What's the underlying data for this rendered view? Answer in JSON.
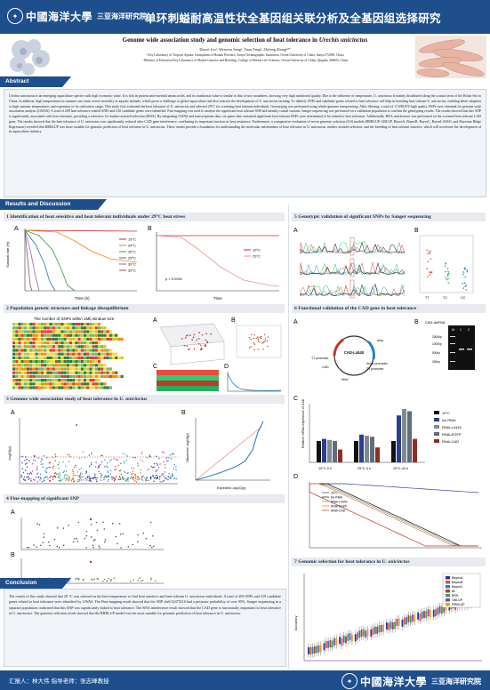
{
  "header": {
    "logo_cn": "中國海洋大學",
    "logo_sub": "三亚海洋研究院",
    "poster_title_cn": "单环刺螠耐高温性状全基因组关联分析及全基因组选择研究"
  },
  "paper": {
    "title_en": "Genome wide association study and genomic selection of heat tolerance in ",
    "title_species": "Urechis unicinctus",
    "authors": "Dawei Lin¹, Wenwen Jiang¹, Yuan Fang¹, Zhifeng Zhang¹²*",
    "affiliation_1": "¹ Key Laboratory of Tropical Aquatic Germplasm of Hainan Province, Sanya Oceanographic Institution, Ocean University of China, Sanya 572000, China",
    "affiliation_2": "² Ministry of Education Key Laboratory of Marine Genetics and Breeding, College of Marine Life Sciences, Ocean University of China, Qingdao 266003, China"
  },
  "sections": {
    "abstract": "Abstract",
    "results": "Results and Discussion",
    "conclusion": "Conclusion"
  },
  "abstract_text": "Urechis unicinctus is an emerging aquaculture species with high economic value. It is rich in protein and essential amino acids, and its nutritional value is similar to that of sea cucumbers, showing very high nutritional quality. Due to the influence of temperature, U. unicinctus is mainly distributed along the coastal areas of the Bohai Sea in China. In addition, high temperatures in summer can cause severe mortality in aquatic animals, which poses a challenge to global aquaculture and also restricts the development of U. unicinctus farming. To identify SNPs and candidate genes related to heat tolerance will help in breeding heat tolerant U. unicinctus, enabling better adaption to high summer temperatures and expansion of its cultivation range. This study first evaluated the heat tolerance of U. unicinctus and selected 29°C for screening heat tolerant individuals. Genotyping was performed using whole-genome resequencing. After filtering, a total of 17,698,070 high quality SNPs were obtained for genome wide association analysis (GWAS). A total of 209 heat tolerance related SNPs and 318 candidate genes were identified. Fine-mapping was used to analyze the significant heat tolerant SNP and identify causal variants. Sanger sequencing was performed on a validation population to confirm the genotyping results. The results showed that this SNP is significantly associated with heat tolerance, providing a reference for marker-assisted selection (MAS). By integrating GWAS and transcriptome data, six genes that contained significant heat tolerant SNPs were determined to be related to heat tolerance. Additionally, RNA interference was performed on the screened heat tolerant CAD gene. The results showed that the heat tolerance of U. unicinctus was significantly reduced after CAD gene interference, confirming its important function in heat resistance. Furthermore, a comparative evaluation of seven genomic selection (GS) models (RRBLUP, GBLUP, BayesA, BayesB, BayesC, BayesLASSO, and Bayesian Ridge Regression) revealed that RRBLUP was more suitable for genomic prediction of heat tolerance in U. unicinctus. These results provide a foundation for understanding the molecular mechanisms of heat tolerance in U. unicinctus, marker assisted selection, and the breeding of heat tolerant varieties, which will accelerate the development of its aquaculture industry.",
  "panels": {
    "p1": "1 Identification of heat sensitive and heat tolerant individuals under 29°C heat stress",
    "p2": "2 Population genetic structure and linkage disequilibrium",
    "p3": "3 Genome wide association study of heat tolerance in ",
    "p3_species": "U. unicinctus",
    "p4": "4 Fine-mapping of significant SNP",
    "p5": "5 Genotypic validation of significant SNPs by Sanger sequencing",
    "p6": "6 Functional validation of the CAD gene in heat tolerance",
    "p7": "7 Genomic selection for heat tolerance in ",
    "p7_species": "U. unicinctus"
  },
  "fig_text": {
    "p1_legend": [
      "19°C",
      "24°C",
      "26°C",
      "29°C",
      "30°C",
      "32°C"
    ],
    "p1b_legend": [
      "19°C",
      "29°C"
    ],
    "p1_xlabel": "Time (h)",
    "p1b_xlabel": "Time",
    "p1_ylabel": "Survival rate (%)",
    "p1b_pvalue": "p < 0.0001",
    "p2_title": "The number of SNPs within 1Mb window size",
    "p6_legend": [
      "19°C",
      "No RNAi",
      "RNAi-L4440",
      "RNAi-EGFP",
      "RNAi-CAD"
    ],
    "p6_groups": [
      "19°C-0 h",
      "29°C-3 h",
      "29°C-44 h"
    ],
    "p6_ylabel": "Relative mRNA expression of CAD",
    "p6_plasmid_name": "CAD-L4440",
    "p6_plasmid_labels": [
      "Amp",
      "T7 promoter",
      "T7 promoter",
      "XmaI promoter",
      "CAD",
      "NheI"
    ],
    "p6_gel_title": "CAD-dsRNA",
    "p6_lanes": [
      "M",
      "1",
      "2"
    ],
    "p6_ladder": [
      "2000bp",
      "1000bp",
      "500bp",
      "250bp"
    ],
    "p6_surv_legend": [
      "29°C",
      "No RNAi",
      "RNAi-L4440",
      "RNAi-EGFP",
      "RNAi-CAD"
    ],
    "p7_legend": [
      "BayesA",
      "BayesB",
      "BayesC",
      "BL",
      "BRR",
      "GBLUP",
      "RRBLUP"
    ],
    "p7_ylabel": "Accuracy",
    "p3_ylabel": "-log10(p)",
    "p3_qq_x": "Expected -log10(p)",
    "p3_qq_y": "Observed -log10(p)",
    "p5_genotypes": [
      "TT",
      "TC",
      "CC"
    ]
  },
  "labels": {
    "A": "A",
    "B": "B",
    "C": "C",
    "D": "D"
  },
  "conclusion_text": "The results of this study showed that 29 °C was selected as the best temperature to find heat sensitive and heat tolerant U. unicinctus individuals. A total of 209 SNPs and 318 candidate genes related to heat tolerance were identified by GWAS. The Fine-mapping result showed that the SNP chr6:52475116 had a posterior probability of over 95%. Sanger sequencing in a separate population confirmed that this SNP was significantly linked to heat tolerance. The RNA interference result showed that the CAD gene is functionally important for heat tolerance in U. unicinctus. The genomic selection result showed that the RRBLUP model was the most suitable for genomic prediction of heat tolerance in U. unicinctus.",
  "footer": {
    "text": "汇报人：林大伟   指导老师：张志峰教授",
    "logo_cn": "中國海洋大學",
    "logo_sub": "三亚海洋研究院"
  },
  "colors": {
    "brand": "#1e4f8c",
    "box": "#f0f3f8",
    "panel": "#e8eaf0"
  }
}
